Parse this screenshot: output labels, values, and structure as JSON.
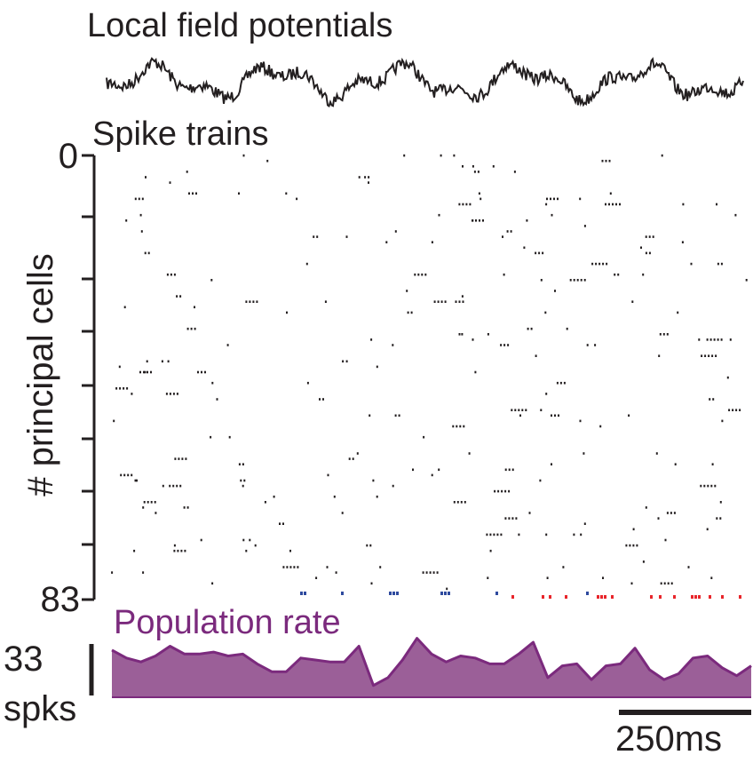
{
  "chart_data": {
    "type": "raster",
    "titles": {
      "lfp": "Local field potentials",
      "spikes": "Spike trains",
      "population": "Population rate"
    },
    "raster": {
      "ylabel": "# principal cells",
      "tick_labels": [
        "0",
        "83"
      ],
      "n_cells": 83,
      "spike_color": "#231f20",
      "interneuron_colors": [
        "#2e4a9e",
        "#e8262b"
      ]
    },
    "population_rate": {
      "color": "#7b2a7d",
      "fill": "#9b5f98",
      "scale_value": "33",
      "scale_unit": "spks",
      "values": [
        24,
        20,
        18,
        21,
        26,
        22,
        22,
        23,
        21,
        22,
        17,
        13,
        13,
        20,
        19,
        18,
        18,
        26,
        6,
        10,
        19,
        30,
        22,
        18,
        21,
        20,
        17,
        17,
        22,
        28,
        10,
        16,
        17,
        9,
        16,
        17,
        25,
        14,
        9,
        12,
        20,
        21,
        15,
        11,
        16
      ]
    },
    "time_scale_bar": "250ms"
  }
}
